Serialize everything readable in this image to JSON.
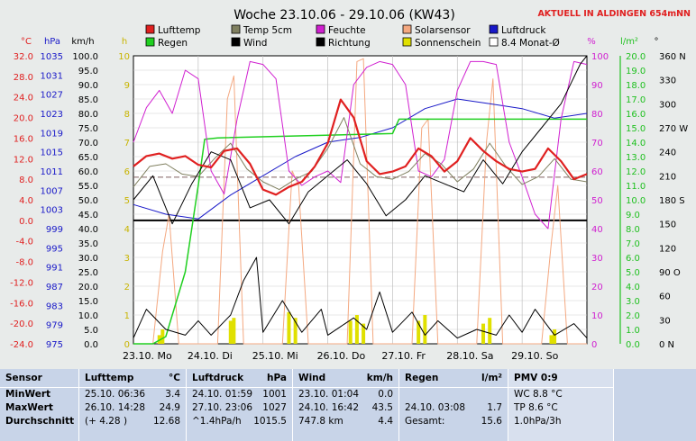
{
  "title": "Woche 23.10.06 - 29.10.06 (KW43)",
  "banner": "AKTUELL IN ALDINGEN 654mNN",
  "axis_units": {
    "celsius": "°C",
    "hpa": "hPa",
    "kmh": "km/h",
    "h": "h",
    "pct": "%",
    "lm2": "l/m²",
    "deg": "°"
  },
  "left_axes": {
    "celsius": [
      "32.0",
      "28.0",
      "24.0",
      "20.0",
      "16.0",
      "12.0",
      "8.0",
      "4.0",
      "0.0",
      "-4.0",
      "-8.0",
      "-12.0",
      "-16.0",
      "-20.0",
      "-24.0"
    ],
    "hpa": [
      "1035",
      "1031",
      "1027",
      "1023",
      "1019",
      "1015",
      "1011",
      "1007",
      "1003",
      "999",
      "995",
      "991",
      "987",
      "983",
      "979",
      "975"
    ],
    "kmh": [
      "100.0",
      "95.0",
      "90.0",
      "85.0",
      "80.0",
      "75.0",
      "70.0",
      "65.0",
      "60.0",
      "55.0",
      "50.0",
      "45.0",
      "40.0",
      "35.0",
      "30.0",
      "25.0",
      "20.0",
      "15.0",
      "10.0",
      "5.0",
      "0.0"
    ],
    "h": [
      "10",
      "9",
      "8",
      "7",
      "6",
      "5",
      "4",
      "3",
      "2",
      "1",
      "0"
    ]
  },
  "right_axes": {
    "pct": [
      "100",
      "90",
      "80",
      "70",
      "60",
      "50",
      "40",
      "30",
      "20",
      "10",
      "0"
    ],
    "lm2": [
      "20.0",
      "19.0",
      "18.0",
      "17.0",
      "16.0",
      "15.0",
      "14.0",
      "13.0",
      "12.0",
      "11.0",
      "10.0",
      "9.0",
      "8.0",
      "7.0",
      "6.0",
      "5.0",
      "4.0",
      "3.0",
      "2.0",
      "1.0",
      "0.0"
    ],
    "deg": [
      "360 N",
      "330",
      "300",
      "270 W",
      "240",
      "210",
      "180 S",
      "150",
      "120",
      "90 O",
      "60",
      "30",
      "0 N"
    ]
  },
  "x_labels": [
    "23.10. Mo",
    "24.10. Di",
    "25.10. Mi",
    "26.10. Do",
    "27.10. Fr",
    "28.10. Sa",
    "29.10. So"
  ],
  "legend": [
    {
      "label": "Lufttemp",
      "color": "#e02020",
      "style": "box"
    },
    {
      "label": "Temp 5cm",
      "color": "#808060",
      "style": "box"
    },
    {
      "label": "Feuchte",
      "color": "#d020d0",
      "style": "box"
    },
    {
      "label": "Solarsensor",
      "color": "#f4a880",
      "style": "box"
    },
    {
      "label": "Luftdruck",
      "color": "#1818c8",
      "style": "box"
    },
    {
      "label": "Regen",
      "color": "#20d020",
      "style": "box"
    },
    {
      "label": "Wind",
      "color": "#000000",
      "style": "box"
    },
    {
      "label": "Richtung",
      "color": "#000000",
      "style": "box"
    },
    {
      "label": "Sonnenschein",
      "color": "#e0e000",
      "style": "box"
    },
    {
      "label": "8.4 Monat-Ø",
      "color": "#ffffff",
      "style": "outline"
    }
  ],
  "colors": {
    "plot_bg": "#ffffff",
    "panel_bg": "#c8d4e8",
    "temp": "#e02020",
    "temp5": "#808060",
    "humidity": "#d020d0",
    "solar": "#f4a880",
    "pressure": "#1818c8",
    "rain": "#20d020",
    "wind": "#000000",
    "direction": "#000000",
    "sunshine": "#e0e000",
    "axis_red": "#e02020",
    "axis_blue": "#1818c8",
    "axis_green": "#20c020",
    "axis_yellow": "#c8b400",
    "axis_magenta": "#d020d0"
  },
  "chart_data": {
    "type": "line",
    "x_range": [
      "2006-10-23",
      "2006-10-30"
    ],
    "x_ticks": [
      "2006-10-23",
      "2006-10-24",
      "2006-10-25",
      "2006-10-26",
      "2006-10-27",
      "2006-10-28",
      "2006-10-29"
    ],
    "ylim": {
      "celsius": [
        -24,
        32
      ],
      "hpa": [
        975,
        1035
      ],
      "kmh": [
        0,
        100
      ],
      "h": [
        0,
        10
      ],
      "pct": [
        0,
        100
      ],
      "lm2": [
        0,
        20
      ],
      "deg": [
        0,
        360
      ]
    },
    "grid": true,
    "month_avg_temp": 8.4,
    "series": [
      {
        "name": "Lufttemp",
        "axis": "celsius",
        "day": [
          0,
          0.2,
          0.4,
          0.6,
          0.8,
          1,
          1.2,
          1.4,
          1.6,
          1.8,
          2,
          2.2,
          2.4,
          2.6,
          2.8,
          3,
          3.2,
          3.4,
          3.6,
          3.8,
          4,
          4.2,
          4.4,
          4.6,
          4.8,
          5,
          5.2,
          5.4,
          5.6,
          5.8,
          6,
          6.2,
          6.4,
          6.6,
          6.8,
          7
        ],
        "values": [
          10.5,
          12.5,
          13,
          12,
          12.5,
          10.8,
          10.3,
          13.5,
          14,
          11,
          6,
          5,
          6.5,
          7.5,
          10.5,
          15,
          23.5,
          20,
          11.5,
          9,
          9.5,
          10.5,
          14,
          12.5,
          9.5,
          11.5,
          16,
          13.5,
          11.5,
          10,
          9.5,
          10,
          14,
          11.5,
          8,
          9
        ]
      },
      {
        "name": "Temp 5cm",
        "axis": "celsius",
        "day": [
          0,
          0.25,
          0.5,
          0.75,
          1,
          1.25,
          1.5,
          1.75,
          2,
          2.25,
          2.5,
          2.75,
          3,
          3.25,
          3.5,
          3.75,
          4,
          4.25,
          4.5,
          4.75,
          5,
          5.25,
          5.5,
          5.75,
          6,
          6.25,
          6.5,
          6.75,
          7
        ],
        "values": [
          6.5,
          10.5,
          11,
          9,
          8.5,
          12,
          15,
          10,
          7.5,
          6,
          8,
          9.5,
          14,
          20,
          11,
          8.5,
          8,
          9.5,
          13,
          11,
          7.5,
          10,
          15,
          10.5,
          7,
          8.5,
          12,
          8,
          7.5
        ]
      },
      {
        "name": "Feuchte",
        "axis": "pct",
        "day": [
          0,
          0.2,
          0.4,
          0.6,
          0.8,
          1,
          1.2,
          1.4,
          1.6,
          1.8,
          2,
          2.2,
          2.4,
          2.6,
          2.8,
          3,
          3.2,
          3.4,
          3.6,
          3.8,
          4,
          4.2,
          4.4,
          4.6,
          4.8,
          5,
          5.2,
          5.4,
          5.6,
          5.8,
          6,
          6.2,
          6.4,
          6.6,
          6.8,
          7
        ],
        "values": [
          70,
          82,
          88,
          80,
          95,
          92,
          60,
          52,
          78,
          98,
          97,
          92,
          60,
          55,
          58,
          60,
          56,
          90,
          96,
          98,
          97,
          90,
          60,
          58,
          64,
          88,
          98,
          98,
          97,
          70,
          58,
          45,
          40,
          78,
          98,
          97
        ]
      },
      {
        "name": "Solarsensor",
        "axis": "pct",
        "day": [
          0,
          0.3,
          0.45,
          0.55,
          0.7,
          1,
          1.3,
          1.45,
          1.55,
          1.7,
          2,
          2.3,
          2.45,
          2.55,
          2.7,
          3,
          3.3,
          3.45,
          3.55,
          3.7,
          4,
          4.3,
          4.45,
          4.55,
          4.7,
          5,
          5.3,
          5.45,
          5.55,
          5.7,
          6,
          6.3,
          6.45,
          6.55,
          6.7,
          7
        ],
        "values": [
          0,
          0,
          32,
          45,
          0,
          0,
          0,
          85,
          93,
          0,
          0,
          0,
          60,
          55,
          0,
          0,
          0,
          98,
          99,
          0,
          0,
          0,
          75,
          78,
          0,
          0,
          0,
          70,
          92,
          0,
          0,
          0,
          35,
          55,
          0,
          0
        ]
      },
      {
        "name": "Luftdruck",
        "axis": "hpa",
        "day": [
          0,
          0.5,
          1,
          1.2,
          1.5,
          2,
          2.5,
          3,
          3.5,
          4,
          4.5,
          5,
          5.5,
          6,
          6.5,
          7
        ],
        "values": [
          1004,
          1002,
          1001,
          1003,
          1006,
          1010,
          1014,
          1017,
          1018,
          1020,
          1024,
          1026,
          1025,
          1024,
          1022,
          1023
        ]
      },
      {
        "name": "Regen",
        "axis": "lm2",
        "day": [
          0,
          0.3,
          0.5,
          0.8,
          1,
          1.1,
          1.3,
          4,
          4.1,
          7
        ],
        "values": [
          0,
          0,
          0.5,
          5,
          11,
          14.2,
          14.3,
          14.6,
          15.6,
          15.6
        ]
      },
      {
        "name": "Wind",
        "axis": "kmh",
        "day": [
          0,
          0.2,
          0.5,
          0.8,
          1,
          1.2,
          1.5,
          1.7,
          1.9,
          2,
          2.3,
          2.6,
          2.9,
          3,
          3.2,
          3.4,
          3.6,
          3.8,
          4,
          4.3,
          4.5,
          4.7,
          5,
          5.3,
          5.6,
          5.8,
          6,
          6.2,
          6.5,
          6.8,
          7
        ],
        "values": [
          2,
          12,
          5,
          3,
          8,
          3,
          10,
          22,
          30,
          4,
          15,
          4,
          12,
          3,
          6,
          9,
          5,
          18,
          4,
          11,
          3,
          8,
          2,
          5,
          3,
          10,
          4,
          12,
          3,
          7,
          2
        ]
      },
      {
        "name": "Richtung",
        "axis": "deg",
        "day": [
          0,
          0.3,
          0.6,
          0.9,
          1.2,
          1.5,
          1.8,
          2.1,
          2.4,
          2.7,
          3,
          3.3,
          3.6,
          3.9,
          4.2,
          4.5,
          4.8,
          5.1,
          5.4,
          5.7,
          6,
          6.3,
          6.6,
          6.9,
          7
        ],
        "values": [
          180,
          210,
          150,
          200,
          240,
          230,
          170,
          180,
          150,
          190,
          210,
          230,
          200,
          160,
          180,
          210,
          200,
          190,
          230,
          200,
          240,
          270,
          300,
          350,
          360
        ]
      },
      {
        "name": "Sonnenschein",
        "axis": "h",
        "day": [
          0.4,
          0.45,
          1.5,
          1.55,
          2.4,
          2.5,
          3.35,
          3.45,
          3.55,
          4.4,
          4.5,
          5.4,
          5.5,
          6.45,
          6.5
        ],
        "values": [
          0.3,
          0.5,
          0.8,
          0.9,
          1.1,
          0.9,
          0.8,
          1,
          0.7,
          0.8,
          1,
          0.7,
          0.9,
          0.3,
          0.5
        ]
      }
    ]
  },
  "table": {
    "cols": [
      {
        "key": "sensor",
        "header": "Sensor",
        "header_unit": "",
        "rows": [
          {
            "l": "MinWert",
            "r": ""
          },
          {
            "l": "MaxWert",
            "r": ""
          },
          {
            "l": "Durchschnitt",
            "r": ""
          }
        ]
      },
      {
        "key": "lufttemp",
        "header": "Lufttemp",
        "header_unit": "°C",
        "rows": [
          {
            "l": "25.10.  06:36",
            "r": "3.4"
          },
          {
            "l": "26.10.  14:28",
            "r": "24.9"
          },
          {
            "l": "(+ 4.28 )",
            "r": "12.68"
          }
        ]
      },
      {
        "key": "luftdruck",
        "header": "Luftdruck",
        "header_unit": "hPa",
        "rows": [
          {
            "l": "24.10.  01:59",
            "r": "1001"
          },
          {
            "l": "27.10.  23:06",
            "r": "1027"
          },
          {
            "l": "^1.4hPa/h",
            "r": "1015.5"
          }
        ]
      },
      {
        "key": "wind",
        "header": "Wind",
        "header_unit": "km/h",
        "rows": [
          {
            "l": "23.10.  01:04",
            "r": "0.0"
          },
          {
            "l": "24.10.  16:42",
            "r": "43.5"
          },
          {
            "l": "747.8 km",
            "r": "4.4"
          }
        ]
      },
      {
        "key": "regen",
        "header": "Regen",
        "header_unit": "l/m²",
        "rows": [
          {
            "l": "",
            "r": ""
          },
          {
            "l": "24.10.  03:08",
            "r": "1.7"
          },
          {
            "l": "Gesamt:",
            "r": "15.6"
          }
        ]
      },
      {
        "key": "pmv",
        "header": "PMV 0:9",
        "header_unit": "",
        "rows": [
          {
            "l": "WC 8.8 °C",
            "r": ""
          },
          {
            "l": "TP 8.6 °C",
            "r": ""
          },
          {
            "l": "1.0hPa/3h",
            "r": ""
          }
        ]
      }
    ]
  }
}
